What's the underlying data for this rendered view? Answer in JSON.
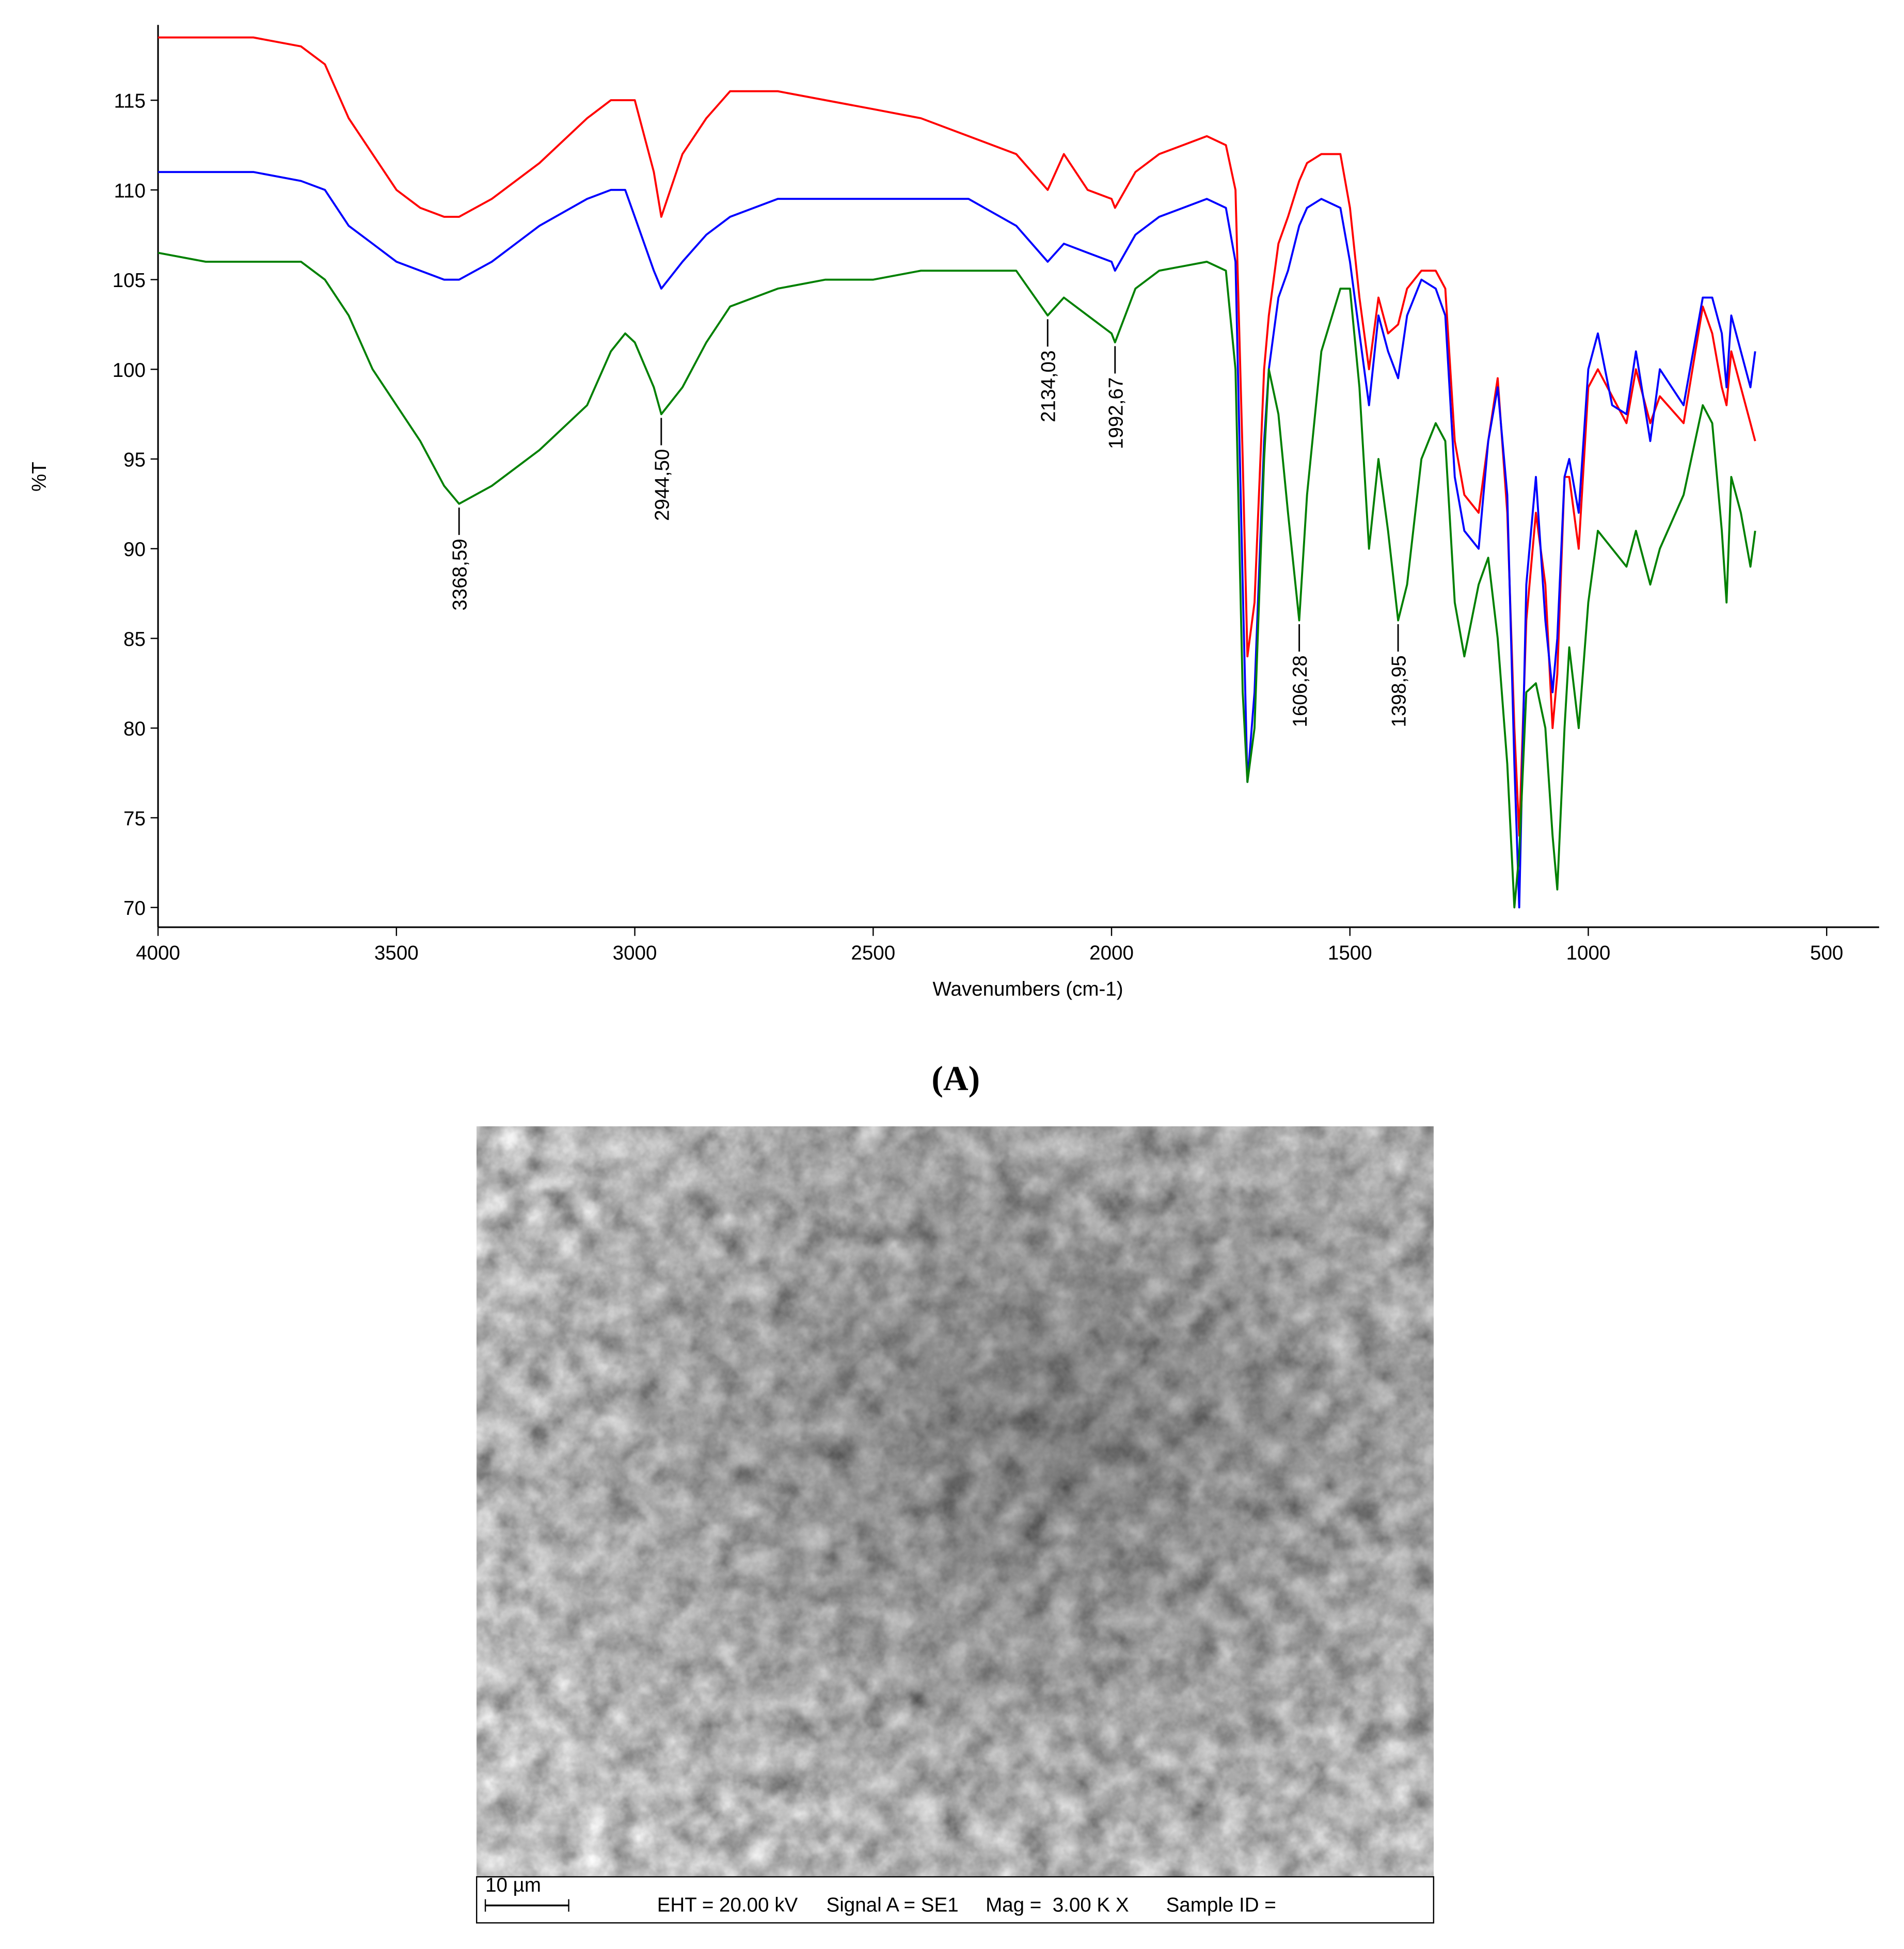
{
  "chart_data": {
    "type": "line",
    "x_label": "Wavenumbers (cm-1)",
    "y_label": "%T",
    "x": [
      4000,
      3900,
      3800,
      3700,
      3650,
      3600,
      3550,
      3500,
      3450,
      3400,
      3368.59,
      3300,
      3200,
      3100,
      3050,
      3020,
      3000,
      2960,
      2944.5,
      2900,
      2850,
      2800,
      2700,
      2600,
      2500,
      2400,
      2300,
      2200,
      2134.03,
      2100,
      2050,
      2000,
      1992.67,
      1950,
      1900,
      1800,
      1760,
      1740,
      1725,
      1715,
      1700,
      1680,
      1670,
      1650,
      1630,
      1606.28,
      1590,
      1560,
      1520,
      1500,
      1480,
      1460,
      1440,
      1420,
      1398.95,
      1380,
      1350,
      1320,
      1300,
      1280,
      1260,
      1230,
      1210,
      1190,
      1170,
      1155,
      1145,
      1130,
      1110,
      1090,
      1075,
      1065,
      1050,
      1040,
      1020,
      1000,
      980,
      950,
      920,
      900,
      870,
      850,
      800,
      760,
      740,
      720,
      710,
      700,
      680,
      660,
      650
    ],
    "series": [
      {
        "color": "#ff0000",
        "values": [
          118.5,
          118.5,
          118.5,
          118,
          117,
          114,
          112,
          110,
          109,
          108.5,
          108.5,
          109.5,
          111.5,
          114,
          115,
          115,
          115,
          111,
          108.5,
          112,
          114,
          115.5,
          115.5,
          115,
          114.5,
          114,
          113,
          112,
          110,
          112,
          110,
          109.5,
          109,
          111,
          112,
          113,
          112.5,
          110,
          95,
          84,
          87,
          100,
          103,
          107,
          108.5,
          110.5,
          111.5,
          112,
          112,
          109,
          104,
          100,
          104,
          102,
          102.5,
          104.5,
          105.5,
          105.5,
          104.5,
          96,
          93,
          92,
          96,
          99.5,
          92,
          80,
          74,
          86,
          92,
          88,
          80,
          83,
          94,
          94,
          90,
          99,
          100,
          98.5,
          97,
          100,
          97,
          98.5,
          97,
          103.5,
          102,
          99,
          98,
          101,
          99,
          97,
          96
        ]
      },
      {
        "color": "#0000ff",
        "values": [
          111,
          111,
          111,
          110.5,
          110,
          108,
          107,
          106,
          105.5,
          105,
          105,
          106,
          108,
          109.5,
          110,
          110,
          108.5,
          105.5,
          104.5,
          106,
          107.5,
          108.5,
          109.5,
          109.5,
          109.5,
          109.5,
          109.5,
          108,
          106,
          107,
          106.5,
          106,
          105.5,
          107.5,
          108.5,
          109.5,
          109,
          106,
          88,
          77,
          82,
          96,
          100,
          104,
          105.5,
          108,
          109,
          109.5,
          109,
          106,
          102,
          98,
          103,
          101,
          99.5,
          103,
          105,
          104.5,
          103,
          94,
          91,
          90,
          96,
          99,
          93,
          78,
          70,
          88,
          94,
          86,
          82,
          85,
          94,
          95,
          92,
          100,
          102,
          98,
          97.5,
          101,
          96,
          100,
          98,
          104,
          104,
          102,
          99,
          103,
          101,
          99,
          101
        ]
      },
      {
        "color": "#008000",
        "values": [
          106.5,
          106,
          106,
          106,
          105,
          103,
          100,
          98,
          96,
          93.5,
          92.5,
          93.5,
          95.5,
          98,
          101,
          102,
          101.5,
          99,
          97.5,
          99,
          101.5,
          103.5,
          104.5,
          105,
          105,
          105.5,
          105.5,
          105.5,
          103,
          104,
          103,
          102,
          101.5,
          104.5,
          105.5,
          106,
          105.5,
          100,
          82,
          77,
          80,
          95,
          100,
          97.5,
          92,
          86,
          93,
          101,
          104.5,
          104.5,
          99,
          90,
          95,
          91,
          86,
          88,
          95,
          97,
          96,
          87,
          84,
          88,
          89.5,
          85,
          78,
          70,
          73,
          82,
          82.5,
          80,
          74,
          71,
          80,
          84.5,
          80,
          87,
          91,
          90,
          89,
          91,
          88,
          90,
          93,
          98,
          97,
          91,
          87,
          94,
          92,
          89,
          91
        ]
      }
    ],
    "annotations": [
      {
        "text": "3368,59",
        "x": 3368.59,
        "y": 92.5
      },
      {
        "text": "2944,50",
        "x": 2944.5,
        "y": 97.5
      },
      {
        "text": "2134,03",
        "x": 2134.03,
        "y": 103
      },
      {
        "text": "1992,67",
        "x": 1992.67,
        "y": 101.5
      },
      {
        "text": "1606,28",
        "x": 1606.28,
        "y": 86
      },
      {
        "text": "1398,95",
        "x": 1398.95,
        "y": 86
      }
    ],
    "xlim": [
      4000,
      390
    ],
    "ylim": [
      68.9,
      119.2
    ],
    "xticks": [
      4000,
      3500,
      3000,
      2500,
      2000,
      1500,
      1000,
      500
    ],
    "yticks": [
      70,
      75,
      80,
      85,
      90,
      95,
      100,
      105,
      110,
      115
    ]
  },
  "caption": "(A)",
  "sem_image": {
    "scale_bar": "10 µm",
    "eht": "EHT = 20.00 kV",
    "signal": "Signal A = SE1",
    "mag": "Mag =  3.00 K X",
    "sample_id": "Sample ID ="
  }
}
